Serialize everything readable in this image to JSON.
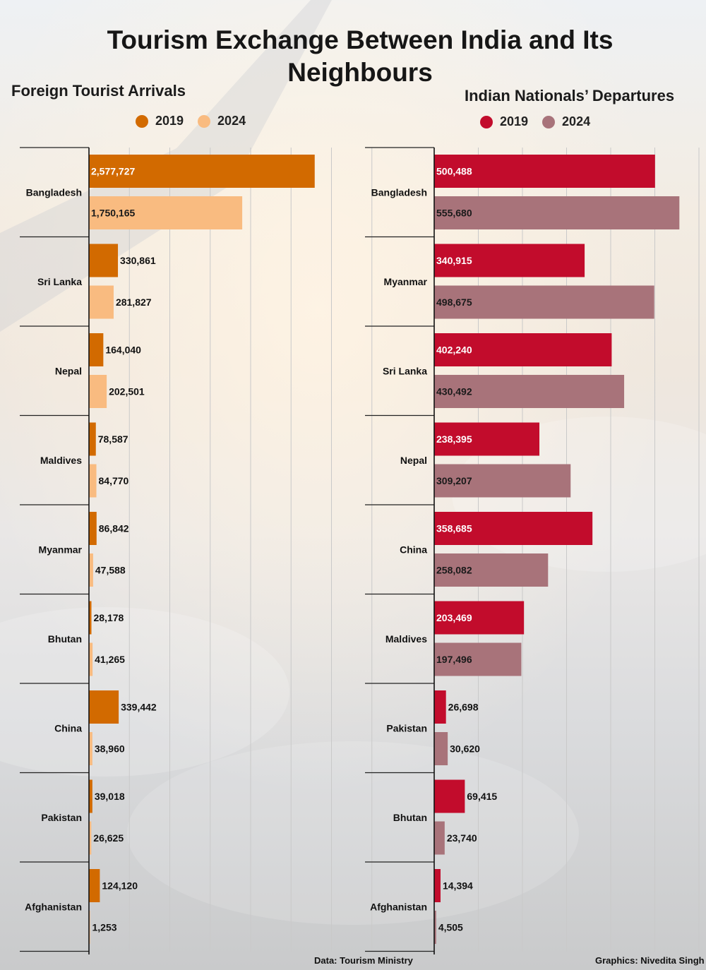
{
  "title": "Tourism Exchange Between India and Its Neighbours",
  "colors": {
    "left_2019": "#d26a00",
    "left_2024": "#f9bb80",
    "right_2019": "#c20c2c",
    "right_2024": "#a8737a"
  },
  "footer": {
    "source": "Data: Tourism Ministry",
    "credit": "Graphics: Nivedita Singh"
  },
  "chart_data": [
    {
      "type": "bar",
      "orientation": "horizontal",
      "title": "Foreign Tourist Arrivals",
      "categories": [
        "Bangladesh",
        "Sri Lanka",
        "Nepal",
        "Maldives",
        "Myanmar",
        "Bhutan",
        "China",
        "Pakistan",
        "Afghanistan"
      ],
      "series": [
        {
          "name": "2019",
          "values": [
            2577727,
            330861,
            164040,
            78587,
            86842,
            28178,
            339442,
            39018,
            124120
          ]
        },
        {
          "name": "2024",
          "values": [
            1750165,
            281827,
            202501,
            84770,
            47588,
            41265,
            38960,
            26625,
            1253
          ]
        }
      ],
      "value_labels": {
        "2019": [
          "2,577,727",
          "330,861",
          "164,040",
          "78,587",
          "86,842",
          "28,178",
          "339,442",
          "39,018",
          "124,120"
        ],
        "2024": [
          "1,750,165",
          "281,827",
          "202,501",
          "84,770",
          "47,588",
          "41,265",
          "38,960",
          "26,625",
          "1,253"
        ]
      },
      "xlim": [
        0,
        3000000
      ],
      "grid": true,
      "legend": "top"
    },
    {
      "type": "bar",
      "orientation": "horizontal",
      "title": "Indian Nationals’ Departures",
      "categories": [
        "Bangladesh",
        "Myanmar",
        "Sri Lanka",
        "Nepal",
        "China",
        "Maldives",
        "Pakistan",
        "Bhutan",
        "Afghanistan"
      ],
      "series": [
        {
          "name": "2019",
          "values": [
            500488,
            340915,
            402240,
            238395,
            358685,
            203469,
            26698,
            69415,
            14394
          ]
        },
        {
          "name": "2024",
          "values": [
            555680,
            498675,
            430492,
            309207,
            258082,
            197496,
            30620,
            23740,
            4505
          ]
        }
      ],
      "value_labels": {
        "2019": [
          "500,488",
          "340,915",
          "402,240",
          "238,395",
          "358,685",
          "203,469",
          "26,698",
          "69,415",
          "14,394"
        ],
        "2024": [
          "555,680",
          "498,675",
          "430,492",
          "309,207",
          "258,082",
          "197,496",
          "30,620",
          "23,740",
          "4,505"
        ]
      },
      "xlim": [
        0,
        600000
      ],
      "grid": true,
      "legend": "top"
    }
  ]
}
